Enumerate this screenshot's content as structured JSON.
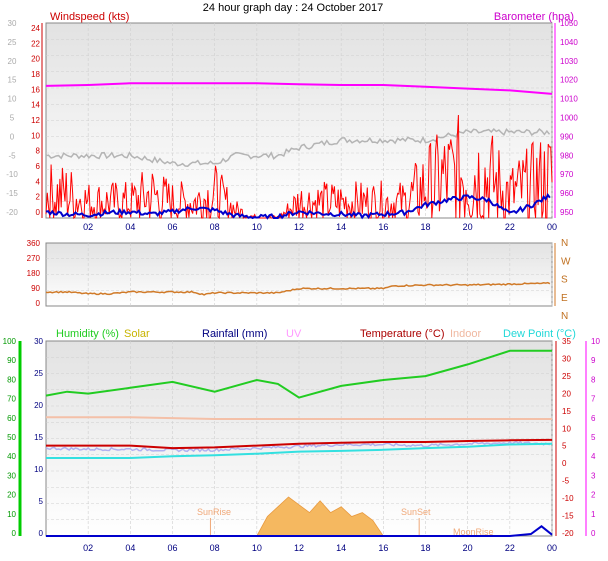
{
  "title": "24 hour graph day : 24 October 2017",
  "x_ticks": [
    "02",
    "04",
    "06",
    "08",
    "10",
    "12",
    "14",
    "16",
    "18",
    "20",
    "22",
    "00"
  ],
  "colors": {
    "wind": "#ff0000",
    "gust": "#0000cc",
    "baro": "#ff00ff",
    "baro_trace": "#b4b4b4",
    "dir": "#d07a28",
    "humidity": "#22cc22",
    "solar": "#c8b400",
    "rain": "#000080",
    "uv": "#ff99ff",
    "temp": "#cc0000",
    "indoor": "#f4c0a8",
    "dewpoint": "#33e0e0",
    "sun_marker": "#f0a878",
    "axis_green": "#00cc00",
    "axis_magenta": "#ff00ff"
  },
  "chart_data": [
    {
      "type": "line",
      "name": "wind-baro",
      "title": "24 hour graph day : 24 October 2017",
      "legend_left": "Windspeed (kts)",
      "legend_right": "Barometer (hpa)",
      "left_axis_1": {
        "ticks": [
          "24",
          "22",
          "20",
          "18",
          "16",
          "14",
          "12",
          "10",
          "8",
          "6",
          "4",
          "2",
          "0"
        ],
        "ylim": [
          0,
          25
        ]
      },
      "left_axis_2": {
        "ticks": [
          "30",
          "25",
          "20",
          "15",
          "10",
          "5",
          "0",
          "-5",
          "-10",
          "-15",
          "-20"
        ],
        "ylim": [
          -20,
          30
        ]
      },
      "right_axis": {
        "ticks": [
          "1050",
          "1040",
          "1030",
          "1020",
          "1010",
          "1000",
          "990",
          "980",
          "970",
          "960",
          "950"
        ],
        "ylim": [
          945,
          1055
        ]
      },
      "xlim": [
        0,
        24
      ],
      "series": [
        {
          "name": "Barometer (hpa)",
          "x": [
            0,
            2,
            4,
            6,
            8,
            10,
            12,
            14,
            16,
            18,
            20,
            22,
            24
          ],
          "values": [
            1019.5,
            1020,
            1021,
            1021,
            1021,
            1021,
            1020.5,
            1020,
            1020,
            1019,
            1018,
            1017,
            1015
          ]
        },
        {
          "name": "",
          "x": [
            0,
            2,
            4,
            6,
            8,
            9,
            10,
            11,
            12,
            14,
            16,
            18,
            20,
            22,
            24
          ],
          "values": [
            8,
            8,
            8,
            7,
            7,
            8,
            8,
            8,
            9,
            10,
            10,
            10,
            11,
            11,
            11
          ]
        },
        {
          "name": "Windspeed (kts)",
          "x": [
            0,
            1,
            2,
            3,
            4,
            5,
            6,
            7,
            8,
            9,
            10,
            11,
            12,
            13,
            14,
            15,
            16,
            17,
            18,
            19,
            20,
            21,
            22,
            23,
            24
          ],
          "values": [
            3,
            3,
            2,
            2,
            2,
            3,
            2,
            2,
            3,
            1,
            0,
            0,
            2,
            2,
            2,
            2,
            2,
            2,
            4,
            5,
            6,
            5,
            3,
            4,
            5
          ]
        },
        {
          "name": "",
          "x": [
            0,
            1,
            2,
            3,
            4,
            5,
            6,
            7,
            8,
            9,
            10,
            11,
            12,
            13,
            14,
            15,
            16,
            17,
            18,
            19,
            20,
            21,
            22,
            23,
            24
          ],
          "values": [
            0.8,
            0.5,
            0.4,
            0.7,
            0.8,
            0.5,
            0.8,
            1.3,
            1.0,
            0.3,
            0.1,
            0.2,
            0.8,
            0.6,
            0.5,
            0.3,
            0.5,
            0.7,
            1.7,
            2.3,
            2.7,
            2.3,
            0.5,
            1.6,
            3.0
          ]
        }
      ]
    },
    {
      "type": "line",
      "name": "wind-direction",
      "left_axis": {
        "ticks": [
          "360",
          "270",
          "180",
          "90",
          "0"
        ],
        "ylim": [
          0,
          360
        ]
      },
      "right_axis": {
        "ticks": [
          "N",
          "W",
          "S",
          "E",
          "N"
        ]
      },
      "xlim": [
        0,
        24
      ],
      "series": [
        {
          "name": "",
          "x": [
            0,
            1,
            2,
            3,
            4,
            6,
            7,
            7.5,
            8,
            10,
            11,
            12,
            16,
            16.5,
            18,
            20,
            22,
            24
          ],
          "values": [
            80,
            80,
            70,
            70,
            80,
            80,
            80,
            65,
            75,
            75,
            75,
            100,
            100,
            115,
            120,
            120,
            125,
            130
          ]
        }
      ]
    },
    {
      "type": "line",
      "name": "temp-humidity",
      "legend": [
        "Humidity  (%)",
        "Solar",
        "Rainfall (mm)",
        "UV",
        "Temperature (°C)",
        "Indoor",
        "Dew Point (°C)"
      ],
      "axis_humidity": {
        "ticks": [
          "100",
          "90",
          "80",
          "70",
          "60",
          "50",
          "40",
          "30",
          "20",
          "10",
          "0"
        ],
        "ylim": [
          0,
          100
        ]
      },
      "axis_rain": {
        "ticks": [
          "30",
          "25",
          "20",
          "15",
          "10",
          "5",
          "0"
        ],
        "ylim": [
          0,
          30
        ]
      },
      "axis_temp": {
        "ticks": [
          "35",
          "30",
          "25",
          "20",
          "15",
          "10",
          "5",
          "0",
          "-5",
          "-10",
          "-15",
          "-20"
        ],
        "ylim": [
          -20,
          35
        ]
      },
      "axis_uv": {
        "ticks": [
          "10",
          "9",
          "8",
          "7",
          "6",
          "5",
          "4",
          "3",
          "2",
          "1",
          "0"
        ],
        "ylim": [
          0,
          10
        ]
      },
      "annotations": {
        "sunrise": "SunRise",
        "sunset": "SunSet",
        "moonrise": "MoonRise",
        "sunrise_x": 7.8,
        "sunset_x": 17.7,
        "moon_x": 20.5
      },
      "xlim": [
        0,
        24
      ],
      "series": [
        {
          "name": "Humidity  (%)",
          "x": [
            0,
            1,
            2,
            4,
            6,
            8,
            10,
            11,
            12,
            14,
            16,
            18,
            20,
            22,
            24
          ],
          "values": [
            72,
            74,
            73,
            76,
            79,
            74,
            80,
            78,
            71,
            77,
            80,
            82,
            88,
            95,
            95
          ]
        },
        {
          "name": "Indoor",
          "x": [
            0,
            4,
            8,
            12,
            16,
            20,
            24
          ],
          "values": [
            13.5,
            13.5,
            13,
            13,
            13,
            13,
            13
          ]
        },
        {
          "name": "Temperature (°C)",
          "x": [
            0,
            2,
            4,
            6,
            8,
            10,
            12,
            14,
            16,
            18,
            20,
            22,
            24
          ],
          "values": [
            5.5,
            5.5,
            5.5,
            4.8,
            5.0,
            5.5,
            6.0,
            6.3,
            6.5,
            6.5,
            6.8,
            7.0,
            7.1
          ]
        },
        {
          "name": "",
          "x": [
            0,
            2,
            4,
            6,
            8,
            10,
            12,
            14,
            16,
            18,
            20,
            22,
            24
          ],
          "values": [
            4.8,
            4.5,
            4.5,
            4.2,
            4.3,
            4.8,
            5.3,
            5.8,
            5.8,
            5.5,
            6.0,
            6.3,
            6.0
          ]
        },
        {
          "name": "Dew Point (°C)",
          "x": [
            0,
            2,
            4,
            6,
            8,
            10,
            12,
            14,
            16,
            18,
            20,
            22,
            24
          ],
          "values": [
            2,
            2,
            2,
            2.5,
            2.8,
            3.2,
            3.8,
            4.0,
            4.3,
            4.8,
            5.2,
            5.8,
            6.0
          ]
        },
        {
          "name": "Solar",
          "x": [
            10,
            10.5,
            11,
            11.5,
            12,
            12.5,
            13,
            13.5,
            14,
            14.5,
            15,
            15.5,
            16
          ],
          "values": [
            0,
            1,
            1.5,
            2,
            1.6,
            1.2,
            1.8,
            1.2,
            1.5,
            1.0,
            1.2,
            0.8,
            0
          ]
        },
        {
          "name": "Rainfall (mm)",
          "x": [
            0,
            22,
            23,
            23.5,
            24
          ],
          "values": [
            0,
            0,
            0.3,
            1.5,
            0.2
          ]
        }
      ]
    }
  ]
}
